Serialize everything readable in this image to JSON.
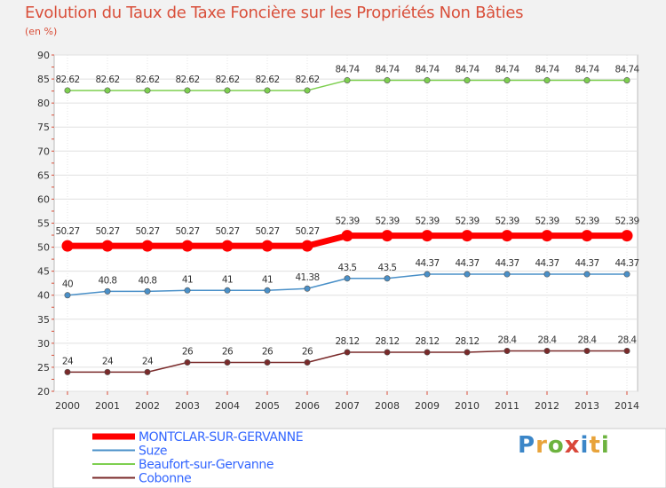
{
  "header": {
    "title": "Evolution du Taux de Taxe Foncière sur les Propriétés Non Bâties",
    "subtitle": "(en %)"
  },
  "logo": {
    "chars": [
      "P",
      "r",
      "o",
      "x",
      "i",
      "t",
      "i"
    ],
    "colors": [
      "#3b86c8",
      "#e8a33a",
      "#6db33f",
      "#d9473a",
      "#3b86c8",
      "#e8a33a",
      "#6db33f"
    ]
  },
  "chart_data": {
    "type": "line",
    "x": [
      2000,
      2001,
      2002,
      2003,
      2004,
      2005,
      2006,
      2007,
      2008,
      2009,
      2010,
      2011,
      2012,
      2013,
      2014
    ],
    "ylim": [
      20,
      90
    ],
    "yticks": [
      20,
      25,
      30,
      35,
      40,
      45,
      50,
      55,
      60,
      65,
      70,
      75,
      80,
      85,
      90
    ],
    "grid": true,
    "legend_position": "bottom-left",
    "series": [
      {
        "name": "Beaufort-sur-Gervanne",
        "color": "#7dcf4f",
        "values": [
          82.62,
          82.62,
          82.62,
          82.62,
          82.62,
          82.62,
          82.62,
          84.74,
          84.74,
          84.74,
          84.74,
          84.74,
          84.74,
          84.74,
          84.74
        ],
        "labels": [
          "82.62",
          "82.62",
          "82.62",
          "82.62",
          "82.62",
          "82.62",
          "82.62",
          "84.74",
          "84.74",
          "84.74",
          "84.74",
          "84.74",
          "84.74",
          "84.74",
          "84.74"
        ]
      },
      {
        "name": "MONTCLAR-SUR-GERVANNE",
        "color": "#ff0000",
        "highlight": true,
        "values": [
          50.27,
          50.27,
          50.27,
          50.27,
          50.27,
          50.27,
          50.27,
          52.39,
          52.39,
          52.39,
          52.39,
          52.39,
          52.39,
          52.39,
          52.39
        ],
        "labels": [
          "50.27",
          "50.27",
          "50.27",
          "50.27",
          "50.27",
          "50.27",
          "50.27",
          "52.39",
          "52.39",
          "52.39",
          "52.39",
          "52.39",
          "52.39",
          "52.39",
          "52.39"
        ]
      },
      {
        "name": "Suze",
        "color": "#4a90c8",
        "values": [
          40,
          40.8,
          40.8,
          41,
          41,
          41,
          41.38,
          43.5,
          43.5,
          44.37,
          44.37,
          44.37,
          44.37,
          44.37,
          44.37
        ],
        "labels": [
          "40",
          "40.8",
          "40.8",
          "41",
          "41",
          "41",
          "41.38",
          "43.5",
          "43.5",
          "44.37",
          "44.37",
          "44.37",
          "44.37",
          "44.37",
          "44.37"
        ]
      },
      {
        "name": "Cobonne",
        "color": "#7a2a2a",
        "values": [
          24,
          24,
          24,
          26,
          26,
          26,
          26,
          28.12,
          28.12,
          28.12,
          28.12,
          28.4,
          28.4,
          28.4,
          28.4
        ],
        "labels": [
          "24",
          "24",
          "24",
          "26",
          "26",
          "26",
          "26",
          "28.12",
          "28.12",
          "28.12",
          "28.12",
          "28.4",
          "28.4",
          "28.4",
          "28.4"
        ]
      }
    ],
    "legend": [
      {
        "name": "MONTCLAR-SUR-GERVANNE",
        "color": "#ff0000",
        "text_color": "#3366ff"
      },
      {
        "name": "Suze",
        "color": "#4a90c8",
        "text_color": "#3366ff"
      },
      {
        "name": "Beaufort-sur-Gervanne",
        "color": "#7dcf4f",
        "text_color": "#3366ff"
      },
      {
        "name": "Cobonne",
        "color": "#7a2a2a",
        "text_color": "#3366ff"
      }
    ]
  }
}
